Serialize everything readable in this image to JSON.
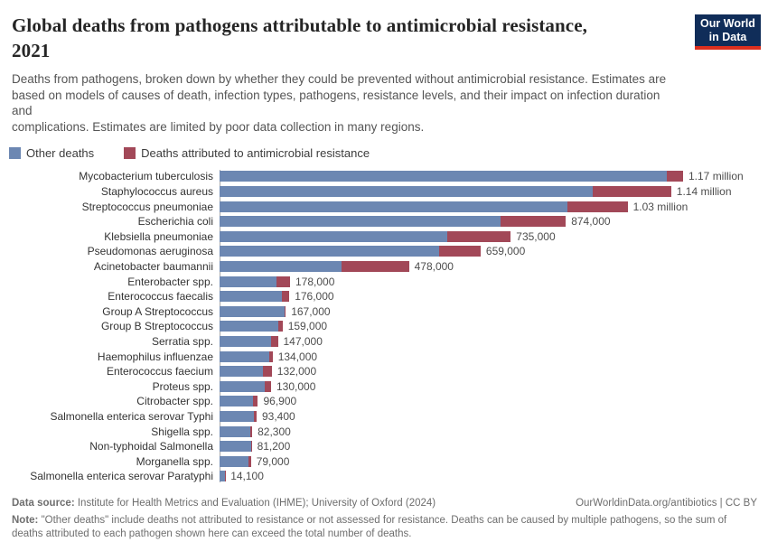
{
  "colors": {
    "other": "#6c87b2",
    "amr": "#a24858",
    "logo_bg": "#102d59",
    "logo_stripe": "#dc2f1e",
    "axis": "#a8a8a8"
  },
  "header": {
    "title_lines": [
      "Global deaths from pathogens attributable to antimicrobial resistance,",
      "2021"
    ],
    "subtitle_lines": [
      "Deaths from pathogens, broken down by whether they could be prevented without antimicrobial resistance. Estimates are",
      "based on models of causes of death, infection types, pathogens, resistance levels, and their impact on infection duration and",
      "complications. Estimates are limited by poor data collection in many regions."
    ],
    "logo_lines": [
      "Our World",
      "in Data"
    ]
  },
  "legend": [
    {
      "label": "Other deaths",
      "key": "other"
    },
    {
      "label": "Deaths attributed to antimicrobial resistance",
      "key": "amr"
    }
  ],
  "chart_data": {
    "type": "bar",
    "orientation": "horizontal",
    "stacked": true,
    "title": "Global deaths from pathogens attributable to antimicrobial resistance, 2021",
    "unit": "deaths",
    "legend_position": "top-left",
    "grid": false,
    "xlim": [
      0,
      1250000
    ],
    "categories": [
      "Mycobacterium tuberculosis",
      "Staphylococcus aureus",
      "Streptococcus pneumoniae",
      "Escherichia coli",
      "Klebsiella pneumoniae",
      "Pseudomonas aeruginosa",
      "Acinetobacter baumannii",
      "Enterobacter spp.",
      "Enterococcus faecalis",
      "Group A Streptococcus",
      "Group B Streptococcus",
      "Serratia spp.",
      "Haemophilus influenzae",
      "Enterococcus faecium",
      "Proteus spp.",
      "Citrobacter spp.",
      "Salmonella enterica serovar Typhi",
      "Shigella spp.",
      "Non-typhoidal Salmonella",
      "Morganella spp.",
      "Salmonella enterica serovar Paratyphi"
    ],
    "series": [
      {
        "name": "Other deaths",
        "values": [
          1129000,
          942000,
          877000,
          710000,
          575000,
          554000,
          307000,
          144000,
          158000,
          164000,
          148000,
          130000,
          125000,
          110000,
          114000,
          83900,
          86400,
          77800,
          79200,
          72000,
          13700
        ]
      },
      {
        "name": "Deaths attributed to antimicrobial resistance",
        "values": [
          41000,
          198000,
          153000,
          164000,
          160000,
          105000,
          171000,
          34000,
          18000,
          3000,
          11000,
          17000,
          9000,
          22000,
          16000,
          13000,
          7000,
          4500,
          2000,
          7000,
          400
        ]
      }
    ],
    "totals": [
      1170000,
      1140000,
      1030000,
      874000,
      735000,
      659000,
      478000,
      178000,
      176000,
      167000,
      159000,
      147000,
      134000,
      132000,
      130000,
      96900,
      93400,
      82300,
      81200,
      79000,
      14100
    ],
    "total_labels": [
      "1.17 million",
      "1.14 million",
      "1.03 million",
      "874,000",
      "735,000",
      "659,000",
      "478,000",
      "178,000",
      "176,000",
      "167,000",
      "159,000",
      "147,000",
      "134,000",
      "132,000",
      "130,000",
      "96,900",
      "93,400",
      "82,300",
      "81,200",
      "79,000",
      "14,100"
    ]
  },
  "footer": {
    "data_source_label": "Data source:",
    "data_source_text": " Institute for Health Metrics and Evaluation (IHME); University of Oxford (2024)",
    "link_text": "OurWorldinData.org/antibiotics",
    "divider": " | ",
    "license_text": "CC BY",
    "note_label": "Note:",
    "note_text": " \"Other deaths\" include deaths not attributed to resistance or not assessed for resistance. Deaths can be caused by multiple pathogens, so the sum of deaths attributed to each pathogen shown here can exceed the total number of deaths."
  }
}
